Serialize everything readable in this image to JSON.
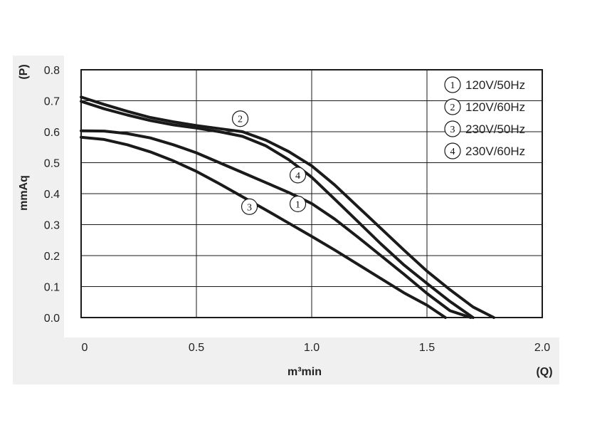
{
  "chart_data": {
    "type": "line",
    "title": "",
    "xlabel": "m³min",
    "xlabel_symbol": "(Q)",
    "ylabel": "mmAq",
    "ylabel_symbol": "(P)",
    "xlim": [
      0,
      2.0
    ],
    "ylim": [
      0,
      0.8
    ],
    "x_ticks": [
      "0",
      "0.5",
      "1.0",
      "1.5",
      "2.0"
    ],
    "x_tick_values": [
      0,
      0.5,
      1.0,
      1.5,
      2.0
    ],
    "y_ticks": [
      "0.0",
      "0.1",
      "0.2",
      "0.3",
      "0.4",
      "0.5",
      "0.6",
      "0.7",
      "0.8"
    ],
    "y_tick_values": [
      0,
      0.1,
      0.2,
      0.3,
      0.4,
      0.5,
      0.6,
      0.7,
      0.8
    ],
    "grid": true,
    "legend_position": "top-right",
    "colors": {
      "line": "#1a1a1a",
      "panel": "#f0f0f0",
      "grid": "#1a1a1a"
    },
    "series": [
      {
        "name": "120V/50Hz",
        "marker": "1",
        "marker_at": [
          0.94,
          0.367
        ],
        "points": [
          [
            0,
            0.603
          ],
          [
            0.1,
            0.602
          ],
          [
            0.2,
            0.594
          ],
          [
            0.3,
            0.58
          ],
          [
            0.4,
            0.558
          ],
          [
            0.5,
            0.532
          ],
          [
            0.6,
            0.5
          ],
          [
            0.7,
            0.468
          ],
          [
            0.8,
            0.436
          ],
          [
            0.9,
            0.404
          ],
          [
            1.0,
            0.368
          ],
          [
            1.1,
            0.318
          ],
          [
            1.2,
            0.26
          ],
          [
            1.3,
            0.2
          ],
          [
            1.4,
            0.14
          ],
          [
            1.5,
            0.078
          ],
          [
            1.6,
            0.022
          ],
          [
            1.69,
            0
          ]
        ]
      },
      {
        "name": "120V/60Hz",
        "marker": "2",
        "marker_at": [
          0.69,
          0.642
        ],
        "points": [
          [
            0,
            0.712
          ],
          [
            0.1,
            0.688
          ],
          [
            0.2,
            0.666
          ],
          [
            0.3,
            0.646
          ],
          [
            0.4,
            0.632
          ],
          [
            0.5,
            0.62
          ],
          [
            0.6,
            0.61
          ],
          [
            0.7,
            0.6
          ],
          [
            0.8,
            0.573
          ],
          [
            0.9,
            0.536
          ],
          [
            1.0,
            0.49
          ],
          [
            1.1,
            0.428
          ],
          [
            1.2,
            0.358
          ],
          [
            1.3,
            0.288
          ],
          [
            1.4,
            0.218
          ],
          [
            1.5,
            0.15
          ],
          [
            1.6,
            0.09
          ],
          [
            1.7,
            0.034
          ],
          [
            1.79,
            0
          ]
        ]
      },
      {
        "name": "230V/50Hz",
        "marker": "3",
        "marker_at": [
          0.73,
          0.358
        ],
        "points": [
          [
            0,
            0.582
          ],
          [
            0.1,
            0.575
          ],
          [
            0.2,
            0.558
          ],
          [
            0.3,
            0.535
          ],
          [
            0.4,
            0.506
          ],
          [
            0.5,
            0.472
          ],
          [
            0.6,
            0.432
          ],
          [
            0.7,
            0.39
          ],
          [
            0.8,
            0.348
          ],
          [
            0.9,
            0.305
          ],
          [
            1.0,
            0.262
          ],
          [
            1.1,
            0.218
          ],
          [
            1.2,
            0.172
          ],
          [
            1.3,
            0.126
          ],
          [
            1.4,
            0.08
          ],
          [
            1.5,
            0.04
          ],
          [
            1.58,
            0
          ]
        ]
      },
      {
        "name": "230V/60Hz",
        "marker": "4",
        "marker_at": [
          0.94,
          0.46
        ],
        "points": [
          [
            0,
            0.698
          ],
          [
            0.1,
            0.674
          ],
          [
            0.2,
            0.654
          ],
          [
            0.3,
            0.636
          ],
          [
            0.4,
            0.622
          ],
          [
            0.5,
            0.612
          ],
          [
            0.6,
            0.6
          ],
          [
            0.7,
            0.585
          ],
          [
            0.8,
            0.555
          ],
          [
            0.9,
            0.51
          ],
          [
            1.0,
            0.453
          ],
          [
            1.1,
            0.382
          ],
          [
            1.2,
            0.31
          ],
          [
            1.3,
            0.238
          ],
          [
            1.4,
            0.17
          ],
          [
            1.5,
            0.11
          ],
          [
            1.6,
            0.052
          ],
          [
            1.7,
            0
          ]
        ]
      }
    ]
  }
}
